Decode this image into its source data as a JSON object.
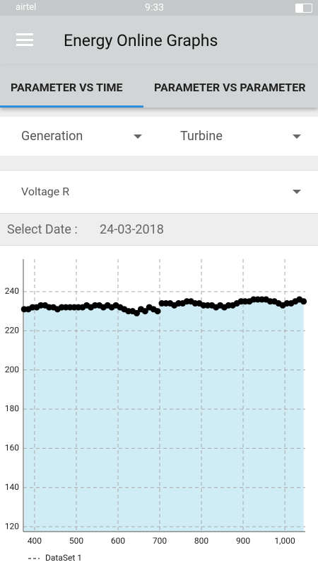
{
  "status_bar": {
    "carrier": "airtel",
    "time": "9:33"
  },
  "app_bar": {
    "title": "Energy Online Graphs"
  },
  "tabs": [
    "PARAMETER VS TIME",
    "PARAMETER VS PARAMETER"
  ],
  "filters": {
    "category": "Generation",
    "unit": "Turbine",
    "parameter": "Voltage R"
  },
  "date_row": {
    "label": "Select Date :",
    "value": "24-03-2018"
  },
  "chart_data": {
    "type": "scatter",
    "fill_color": "#d0ecf4",
    "grid": true,
    "legend": "bottom-left",
    "xlim": [
      373,
      1049
    ],
    "ylim": [
      117.5,
      256.6
    ],
    "xticks": [
      400,
      500,
      600,
      700,
      800,
      900,
      {
        "value": 1000,
        "label": "1,000"
      }
    ],
    "yticks": [
      120,
      140,
      160,
      180,
      200,
      220,
      240
    ],
    "x": [
      375,
      385,
      395,
      405,
      415,
      425,
      435,
      445,
      455,
      465,
      475,
      485,
      495,
      505,
      515,
      525,
      535,
      545,
      555,
      565,
      575,
      585,
      595,
      605,
      615,
      625,
      635,
      645,
      655,
      665,
      675,
      685,
      695,
      705,
      715,
      725,
      735,
      745,
      755,
      765,
      775,
      785,
      795,
      805,
      815,
      825,
      835,
      845,
      855,
      865,
      875,
      885,
      895,
      905,
      915,
      925,
      935,
      945,
      955,
      965,
      975,
      985,
      995,
      1005,
      1015,
      1025,
      1035,
      1045
    ],
    "series": [
      {
        "name": "DataSet 1",
        "color": "#000000",
        "values": [
          231,
          231,
          232,
          232,
          233,
          233,
          232,
          232,
          231,
          232,
          232,
          232,
          232,
          232,
          232,
          233,
          232,
          233,
          233,
          232,
          233,
          232,
          233,
          232,
          231,
          230,
          230,
          229,
          231,
          230,
          232,
          231,
          230,
          234,
          234,
          234,
          233,
          234,
          234,
          235,
          235,
          234,
          234,
          233,
          233,
          233,
          232,
          233,
          232,
          233,
          233,
          234,
          235,
          235,
          235,
          236,
          236,
          236,
          236,
          235,
          235,
          234,
          233,
          234,
          234,
          235,
          236,
          235
        ]
      }
    ]
  }
}
